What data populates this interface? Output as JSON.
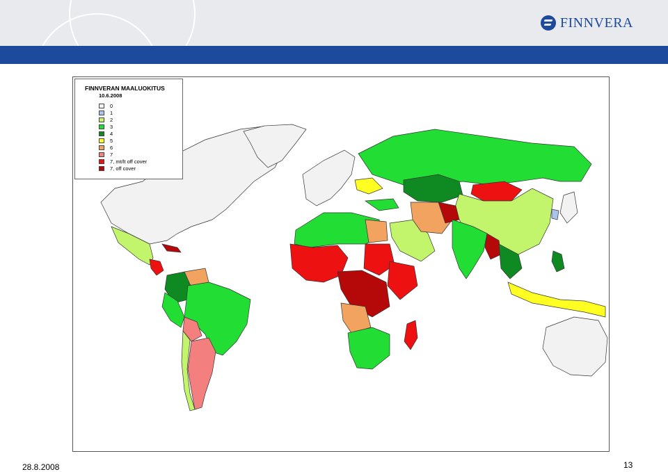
{
  "header": {
    "logo_text": "FINNVERA",
    "logo_icon": "finnvera-logo-icon"
  },
  "legend": {
    "title": "FINNVERAN MAALUOKITUS",
    "date": "10.6.2008",
    "items": [
      {
        "label": "0",
        "color": "#f2f2f2"
      },
      {
        "label": "1",
        "color": "#a9c5ee"
      },
      {
        "label": "2",
        "color": "#c3f56c"
      },
      {
        "label": "3",
        "color": "#22dd33"
      },
      {
        "label": "4",
        "color": "#0f8a22"
      },
      {
        "label": "5",
        "color": "#ffff22"
      },
      {
        "label": "6",
        "color": "#f2a35f"
      },
      {
        "label": "7",
        "color": "#f47f7f"
      },
      {
        "label": "7, mt/lt off cover",
        "color": "#ee1111"
      },
      {
        "label": "7, off cover",
        "color": "#b50909"
      }
    ]
  },
  "footer": {
    "date": "28.8.2008",
    "page_number": "13"
  }
}
